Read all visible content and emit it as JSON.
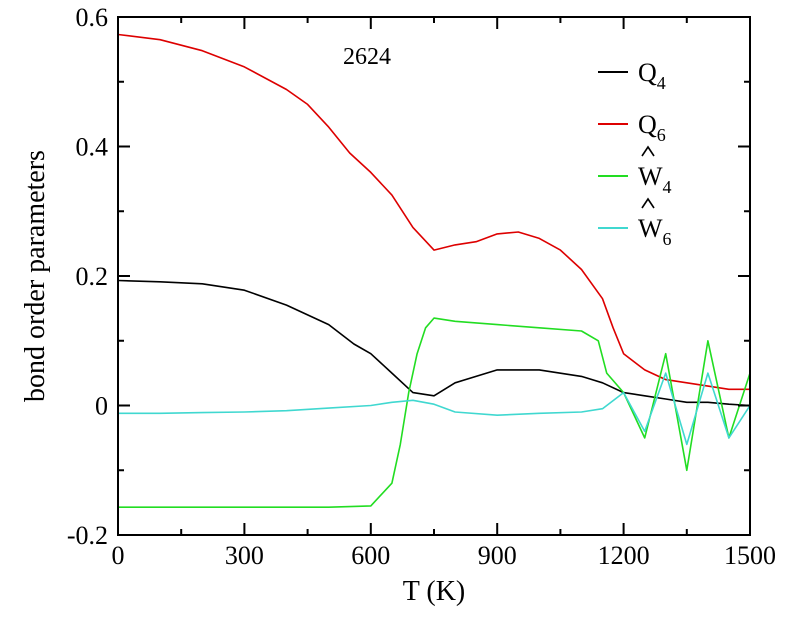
{
  "chart_data": {
    "type": "line",
    "title": "",
    "annotation": "2624",
    "xlabel": "T (K)",
    "ylabel": "bond order parameters",
    "xlim": [
      0,
      1500
    ],
    "ylim": [
      -0.2,
      0.6
    ],
    "x_ticks": [
      "0",
      "300",
      "600",
      "900",
      "1200",
      "1500"
    ],
    "y_ticks": [
      "-0.2",
      "0",
      "0.2",
      "0.4",
      "0.6"
    ],
    "grid": false,
    "legend_position": "top-right",
    "series": [
      {
        "name": "Q4",
        "symbol": "Q",
        "subscript": "4",
        "hat": false,
        "color": "#000000",
        "x": [
          0,
          100,
          200,
          300,
          400,
          500,
          560,
          600,
          650,
          700,
          750,
          800,
          900,
          1000,
          1100,
          1150,
          1200,
          1250,
          1300,
          1350,
          1400,
          1450,
          1500
        ],
        "y": [
          0.193,
          0.191,
          0.188,
          0.178,
          0.155,
          0.125,
          0.095,
          0.08,
          0.05,
          0.02,
          0.015,
          0.035,
          0.055,
          0.055,
          0.045,
          0.035,
          0.02,
          0.015,
          0.01,
          0.005,
          0.005,
          0.002,
          0.0
        ]
      },
      {
        "name": "Q6",
        "symbol": "Q",
        "subscript": "6",
        "hat": false,
        "color": "#dd0000",
        "x": [
          0,
          100,
          200,
          300,
          400,
          450,
          500,
          550,
          600,
          650,
          700,
          750,
          800,
          850,
          900,
          950,
          1000,
          1050,
          1100,
          1150,
          1175,
          1200,
          1250,
          1300,
          1350,
          1400,
          1450,
          1500
        ],
        "y": [
          0.573,
          0.565,
          0.548,
          0.523,
          0.488,
          0.465,
          0.43,
          0.39,
          0.36,
          0.325,
          0.275,
          0.24,
          0.248,
          0.253,
          0.265,
          0.268,
          0.258,
          0.24,
          0.21,
          0.165,
          0.12,
          0.08,
          0.055,
          0.04,
          0.035,
          0.03,
          0.025,
          0.025
        ]
      },
      {
        "name": "W4",
        "symbol": "W",
        "subscript": "4",
        "hat": true,
        "color": "#22dd22",
        "x": [
          0,
          100,
          200,
          300,
          400,
          500,
          600,
          650,
          670,
          690,
          710,
          730,
          750,
          800,
          900,
          1000,
          1100,
          1140,
          1160,
          1200,
          1250,
          1300,
          1350,
          1400,
          1450,
          1500
        ],
        "y": [
          -0.157,
          -0.157,
          -0.157,
          -0.157,
          -0.157,
          -0.157,
          -0.155,
          -0.12,
          -0.06,
          0.02,
          0.08,
          0.12,
          0.135,
          0.13,
          0.125,
          0.12,
          0.115,
          0.1,
          0.05,
          0.02,
          -0.05,
          0.08,
          -0.1,
          0.1,
          -0.05,
          0.05
        ]
      },
      {
        "name": "W6",
        "symbol": "W",
        "subscript": "6",
        "hat": true,
        "color": "#40d8d0",
        "x": [
          0,
          100,
          200,
          300,
          400,
          500,
          600,
          650,
          700,
          750,
          800,
          900,
          1000,
          1100,
          1150,
          1200,
          1250,
          1300,
          1350,
          1400,
          1450,
          1500
        ],
        "y": [
          -0.012,
          -0.012,
          -0.011,
          -0.01,
          -0.008,
          -0.004,
          0.0,
          0.005,
          0.008,
          0.002,
          -0.01,
          -0.015,
          -0.012,
          -0.01,
          -0.005,
          0.02,
          -0.04,
          0.05,
          -0.06,
          0.05,
          -0.05,
          0.0
        ]
      }
    ]
  }
}
